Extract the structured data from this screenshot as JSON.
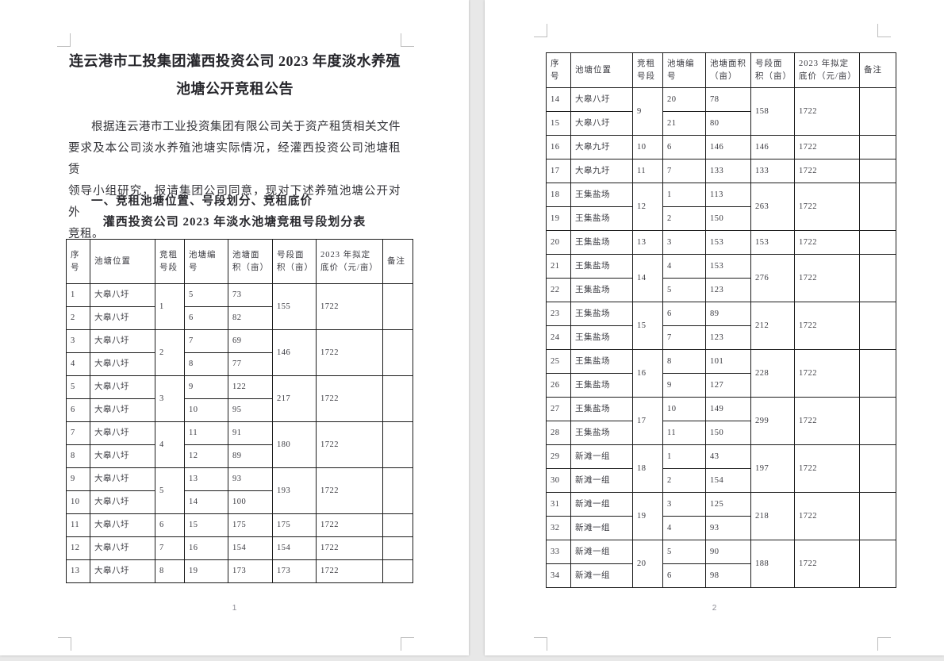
{
  "colors": {
    "viewer_bg": "#e8e8e8",
    "page_bg": "#ffffff",
    "table_border": "#1c1c1c",
    "text": "#333338",
    "boundary_mark": "#bdbdbd",
    "page_number": "#8b8b94"
  },
  "page1": {
    "title_lines": [
      "连云港市工投集团灌西投资公司 2023 年度淡水养殖",
      "池塘公开竞租公告"
    ],
    "body_lines": [
      "根据连云港市工业投资集团有限公司关于资产租赁相关文件",
      "要求及本公司淡水养殖池塘实际情况，经灌西投资公司池塘租赁",
      "领导小组研究，报请集团公司同意，现对下述养殖池塘公开对外",
      "竞租。"
    ],
    "section_heading": "一、竞租池塘位置、号段划分、竞租底价",
    "table_caption": "灌西投资公司 2023 年淡水池塘竞租号段划分表",
    "page_number": "1"
  },
  "page2": {
    "page_number": "2"
  },
  "table_headers": [
    "序号",
    "池塘位置",
    "竞租号段",
    "池塘编号",
    "池塘面积（亩）",
    "号段面积（亩）",
    "2023 年拟定底价（元/亩）",
    "备注"
  ],
  "tables": {
    "page1_groups": [
      {
        "location": "大皋八圩",
        "segment": "1",
        "ponds": [
          {
            "seq": "1",
            "pond_no": "5",
            "area": "73"
          },
          {
            "seq": "2",
            "pond_no": "6",
            "area": "82"
          }
        ],
        "segment_area": "155",
        "price": "1722",
        "remark": ""
      },
      {
        "location": "大皋八圩",
        "segment": "2",
        "ponds": [
          {
            "seq": "3",
            "pond_no": "7",
            "area": "69"
          },
          {
            "seq": "4",
            "pond_no": "8",
            "area": "77"
          }
        ],
        "segment_area": "146",
        "price": "1722",
        "remark": ""
      },
      {
        "location": "大皋八圩",
        "segment": "3",
        "ponds": [
          {
            "seq": "5",
            "pond_no": "9",
            "area": "122"
          },
          {
            "seq": "6",
            "pond_no": "10",
            "area": "95"
          }
        ],
        "segment_area": "217",
        "price": "1722",
        "remark": ""
      },
      {
        "location": "大皋八圩",
        "segment": "4",
        "ponds": [
          {
            "seq": "7",
            "pond_no": "11",
            "area": "91"
          },
          {
            "seq": "8",
            "pond_no": "12",
            "area": "89"
          }
        ],
        "segment_area": "180",
        "price": "1722",
        "remark": ""
      },
      {
        "location": "大皋八圩",
        "segment": "5",
        "ponds": [
          {
            "seq": "9",
            "pond_no": "13",
            "area": "93"
          },
          {
            "seq": "10",
            "pond_no": "14",
            "area": "100"
          }
        ],
        "segment_area": "193",
        "price": "1722",
        "remark": ""
      },
      {
        "location": "大皋八圩",
        "segment": "6",
        "ponds": [
          {
            "seq": "11",
            "pond_no": "15",
            "area": "175"
          }
        ],
        "segment_area": "175",
        "price": "1722",
        "remark": ""
      },
      {
        "location": "大皋八圩",
        "segment": "7",
        "ponds": [
          {
            "seq": "12",
            "pond_no": "16",
            "area": "154"
          }
        ],
        "segment_area": "154",
        "price": "1722",
        "remark": ""
      },
      {
        "location": "大皋八圩",
        "segment": "8",
        "ponds": [
          {
            "seq": "13",
            "pond_no": "19",
            "area": "173"
          }
        ],
        "segment_area": "173",
        "price": "1722",
        "remark": ""
      }
    ],
    "page2_groups": [
      {
        "location": "大皋八圩",
        "segment": "9",
        "ponds": [
          {
            "seq": "14",
            "pond_no": "20",
            "area": "78"
          },
          {
            "seq": "15",
            "pond_no": "21",
            "area": "80"
          }
        ],
        "segment_area": "158",
        "price": "1722",
        "remark": ""
      },
      {
        "location": "大皋九圩",
        "segment": "10",
        "ponds": [
          {
            "seq": "16",
            "pond_no": "6",
            "area": "146"
          }
        ],
        "segment_area": "146",
        "price": "1722",
        "remark": ""
      },
      {
        "location": "大皋九圩",
        "segment": "11",
        "ponds": [
          {
            "seq": "17",
            "pond_no": "7",
            "area": "133"
          }
        ],
        "segment_area": "133",
        "price": "1722",
        "remark": ""
      },
      {
        "location": "王集盐场",
        "segment": "12",
        "ponds": [
          {
            "seq": "18",
            "pond_no": "1",
            "area": "113"
          },
          {
            "seq": "19",
            "pond_no": "2",
            "area": "150"
          }
        ],
        "segment_area": "263",
        "price": "1722",
        "remark": ""
      },
      {
        "location": "王集盐场",
        "segment": "13",
        "ponds": [
          {
            "seq": "20",
            "pond_no": "3",
            "area": "153"
          }
        ],
        "segment_area": "153",
        "price": "1722",
        "remark": ""
      },
      {
        "location": "王集盐场",
        "segment": "14",
        "ponds": [
          {
            "seq": "21",
            "pond_no": "4",
            "area": "153"
          },
          {
            "seq": "22",
            "pond_no": "5",
            "area": "123"
          }
        ],
        "segment_area": "276",
        "price": "1722",
        "remark": ""
      },
      {
        "location": "王集盐场",
        "segment": "15",
        "ponds": [
          {
            "seq": "23",
            "pond_no": "6",
            "area": "89"
          },
          {
            "seq": "24",
            "pond_no": "7",
            "area": "123"
          }
        ],
        "segment_area": "212",
        "price": "1722",
        "remark": ""
      },
      {
        "location": "王集盐场",
        "segment": "16",
        "ponds": [
          {
            "seq": "25",
            "pond_no": "8",
            "area": "101"
          },
          {
            "seq": "26",
            "pond_no": "9",
            "area": "127"
          }
        ],
        "segment_area": "228",
        "price": "1722",
        "remark": ""
      },
      {
        "location": "王集盐场",
        "segment": "17",
        "ponds": [
          {
            "seq": "27",
            "pond_no": "10",
            "area": "149"
          },
          {
            "seq": "28",
            "pond_no": "11",
            "area": "150"
          }
        ],
        "segment_area": "299",
        "price": "1722",
        "remark": ""
      },
      {
        "location": "新滩一组",
        "segment": "18",
        "ponds": [
          {
            "seq": "29",
            "pond_no": "1",
            "area": "43"
          },
          {
            "seq": "30",
            "pond_no": "2",
            "area": "154"
          }
        ],
        "segment_area": "197",
        "price": "1722",
        "remark": ""
      },
      {
        "location": "新滩一组",
        "segment": "19",
        "ponds": [
          {
            "seq": "31",
            "pond_no": "3",
            "area": "125"
          },
          {
            "seq": "32",
            "pond_no": "4",
            "area": "93"
          }
        ],
        "segment_area": "218",
        "price": "1722",
        "remark": ""
      },
      {
        "location": "新滩一组",
        "segment": "20",
        "ponds": [
          {
            "seq": "33",
            "pond_no": "5",
            "area": "90"
          },
          {
            "seq": "34",
            "pond_no": "6",
            "area": "98"
          }
        ],
        "segment_area": "188",
        "price": "1722",
        "remark": ""
      }
    ]
  }
}
